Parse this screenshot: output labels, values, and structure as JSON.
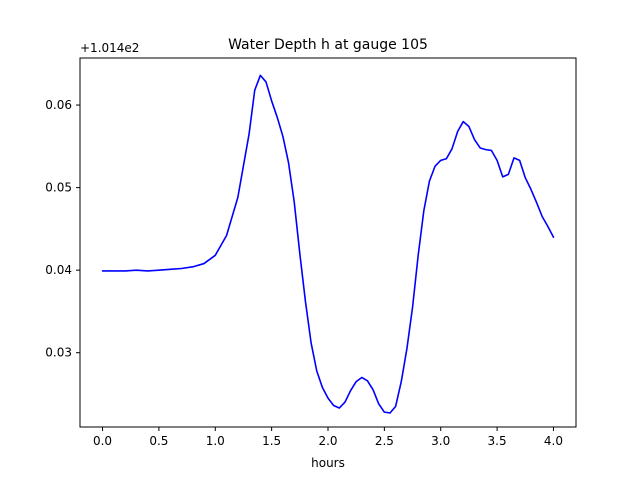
{
  "chart_data": {
    "type": "line",
    "title": "Water Depth h at gauge 105",
    "xlabel": "hours",
    "ylabel": "",
    "y_offset_label": "+1.014e2",
    "xlim": [
      -0.2,
      4.2
    ],
    "ylim": [
      0.021,
      0.0657
    ],
    "x_ticks": [
      0.0,
      0.5,
      1.0,
      1.5,
      2.0,
      2.5,
      3.0,
      3.5,
      4.0
    ],
    "x_tick_labels": [
      "0.0",
      "0.5",
      "1.0",
      "1.5",
      "2.0",
      "2.5",
      "3.0",
      "3.5",
      "4.0"
    ],
    "y_ticks": [
      0.03,
      0.04,
      0.05,
      0.06
    ],
    "y_tick_labels": [
      "0.03",
      "0.04",
      "0.05",
      "0.06"
    ],
    "grid": false,
    "series": [
      {
        "color": "#0000ff",
        "x": [
          0.0,
          0.1,
          0.2,
          0.3,
          0.4,
          0.5,
          0.6,
          0.7,
          0.8,
          0.9,
          1.0,
          1.1,
          1.2,
          1.3,
          1.35,
          1.4,
          1.45,
          1.5,
          1.55,
          1.6,
          1.65,
          1.7,
          1.75,
          1.8,
          1.85,
          1.9,
          1.95,
          2.0,
          2.05,
          2.1,
          2.15,
          2.2,
          2.25,
          2.3,
          2.35,
          2.4,
          2.45,
          2.5,
          2.55,
          2.6,
          2.65,
          2.7,
          2.75,
          2.8,
          2.85,
          2.9,
          2.95,
          3.0,
          3.05,
          3.1,
          3.15,
          3.2,
          3.25,
          3.3,
          3.35,
          3.4,
          3.45,
          3.5,
          3.55,
          3.6,
          3.65,
          3.7,
          3.75,
          3.8,
          3.85,
          3.9,
          3.95,
          4.0
        ],
        "y": [
          0.0399,
          0.0399,
          0.0399,
          0.04,
          0.0399,
          0.04,
          0.0401,
          0.0402,
          0.0404,
          0.0408,
          0.0418,
          0.0442,
          0.0488,
          0.0565,
          0.0618,
          0.0636,
          0.0628,
          0.0605,
          0.0585,
          0.0562,
          0.053,
          0.0483,
          0.042,
          0.0362,
          0.0312,
          0.0278,
          0.0258,
          0.0245,
          0.0236,
          0.0233,
          0.024,
          0.0254,
          0.0265,
          0.027,
          0.0266,
          0.0255,
          0.0238,
          0.0228,
          0.0227,
          0.0235,
          0.0265,
          0.0305,
          0.0355,
          0.0418,
          0.0472,
          0.0508,
          0.0526,
          0.0533,
          0.0535,
          0.0547,
          0.0568,
          0.058,
          0.0574,
          0.0558,
          0.0548,
          0.0546,
          0.0545,
          0.0533,
          0.0513,
          0.0516,
          0.0536,
          0.0533,
          0.0512,
          0.0498,
          0.0482,
          0.0465,
          0.0453,
          0.044
        ]
      }
    ]
  }
}
